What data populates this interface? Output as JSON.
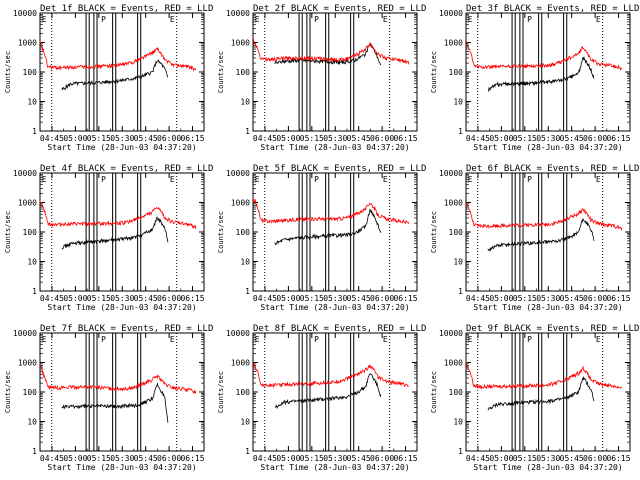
{
  "figure": {
    "xlabel": "Start Time (28-Jun-03 04:37:20)",
    "ylabel": "Counts/sec",
    "x_ticks": [
      "04:45",
      "05:00",
      "05:15",
      "05:30",
      "05:45",
      "06:00",
      "06:15"
    ],
    "y_ticks": [
      "1",
      "10",
      "100",
      "1000",
      "10000"
    ],
    "flags": [
      "E",
      "P",
      "E"
    ]
  },
  "chart_data": [
    {
      "type": "line",
      "title": "Det 1f BLACK = Events, RED = LLD",
      "xlabel": "Start Time (28-Jun-03 04:37:20)",
      "ylabel": "Counts/sec",
      "ylim": [
        1,
        10000
      ],
      "yscale": "log",
      "x_unit": "minutes after 04:37:20",
      "xlim": [
        0,
        105
      ],
      "series": [
        {
          "name": "Events",
          "color": "#000000",
          "x": [
            14,
            20,
            30,
            40,
            50,
            55,
            60,
            65,
            72,
            75,
            78,
            80,
            81,
            82
          ],
          "values": [
            25,
            40,
            42,
            45,
            50,
            55,
            60,
            70,
            100,
            250,
            180,
            120,
            90,
            60
          ]
        },
        {
          "name": "LLD",
          "color": "#ff0000",
          "x": [
            0,
            3,
            5,
            10,
            20,
            30,
            40,
            50,
            55,
            60,
            65,
            72,
            75,
            78,
            80,
            85,
            95,
            100
          ],
          "values": [
            1000,
            400,
            150,
            140,
            145,
            150,
            160,
            170,
            190,
            220,
            300,
            450,
            600,
            400,
            250,
            180,
            150,
            120
          ]
        }
      ]
    },
    {
      "type": "line",
      "title": "Det 2f BLACK = Events, RED = LLD",
      "xlabel": "Start Time (28-Jun-03 04:37:20)",
      "ylabel": "Counts/sec",
      "ylim": [
        1,
        10000
      ],
      "yscale": "log",
      "x_unit": "minutes after 04:37:20",
      "xlim": [
        0,
        105
      ],
      "series": [
        {
          "name": "Events",
          "color": "#000000",
          "x": [
            14,
            20,
            30,
            40,
            50,
            55,
            60,
            65,
            72,
            75,
            78,
            80,
            81,
            82
          ],
          "values": [
            200,
            230,
            250,
            240,
            220,
            210,
            220,
            250,
            400,
            900,
            500,
            300,
            200,
            150
          ]
        },
        {
          "name": "LLD",
          "color": "#ff0000",
          "x": [
            0,
            3,
            5,
            10,
            20,
            30,
            40,
            50,
            55,
            60,
            65,
            72,
            75,
            78,
            80,
            85,
            95,
            100
          ],
          "values": [
            1300,
            600,
            300,
            260,
            290,
            300,
            290,
            270,
            260,
            280,
            350,
            600,
            900,
            600,
            400,
            300,
            250,
            200
          ]
        }
      ]
    },
    {
      "type": "line",
      "title": "Det 3f BLACK = Events, RED = LLD",
      "xlabel": "Start Time (28-Jun-03 04:37:20)",
      "ylabel": "Counts/sec",
      "ylim": [
        1,
        10000
      ],
      "yscale": "log",
      "x_unit": "minutes after 04:37:20",
      "xlim": [
        0,
        105
      ],
      "series": [
        {
          "name": "Events",
          "color": "#000000",
          "x": [
            14,
            20,
            30,
            40,
            50,
            55,
            60,
            65,
            72,
            75,
            78,
            80,
            81,
            82
          ],
          "values": [
            25,
            38,
            40,
            42,
            45,
            48,
            52,
            60,
            90,
            300,
            180,
            120,
            90,
            60
          ]
        },
        {
          "name": "LLD",
          "color": "#ff0000",
          "x": [
            0,
            3,
            5,
            10,
            20,
            30,
            40,
            50,
            55,
            60,
            65,
            72,
            75,
            78,
            80,
            85,
            95,
            100
          ],
          "values": [
            1100,
            450,
            160,
            150,
            150,
            155,
            160,
            165,
            175,
            210,
            280,
            420,
            700,
            400,
            260,
            190,
            160,
            130
          ]
        }
      ]
    },
    {
      "type": "line",
      "title": "Det 4f BLACK = Events, RED = LLD",
      "xlabel": "Start Time (28-Jun-03 04:37:20)",
      "ylabel": "Counts/sec",
      "ylim": [
        1,
        10000
      ],
      "yscale": "log",
      "x_unit": "minutes after 04:37:20",
      "xlim": [
        0,
        105
      ],
      "series": [
        {
          "name": "Events",
          "color": "#000000",
          "x": [
            14,
            20,
            30,
            40,
            50,
            55,
            60,
            65,
            72,
            75,
            78,
            80,
            81,
            82
          ],
          "values": [
            30,
            40,
            45,
            50,
            55,
            60,
            65,
            80,
            120,
            300,
            200,
            130,
            80,
            40
          ]
        },
        {
          "name": "LLD",
          "color": "#ff0000",
          "x": [
            0,
            3,
            5,
            10,
            20,
            30,
            40,
            50,
            55,
            60,
            65,
            72,
            75,
            78,
            80,
            85,
            95,
            100
          ],
          "values": [
            1200,
            500,
            190,
            180,
            185,
            190,
            195,
            200,
            210,
            250,
            320,
            480,
            700,
            450,
            300,
            220,
            180,
            150
          ]
        }
      ]
    },
    {
      "type": "line",
      "title": "Det 5f BLACK = Events, RED = LLD",
      "xlabel": "Start Time (28-Jun-03 04:37:20)",
      "ylabel": "Counts/sec",
      "ylim": [
        1,
        10000
      ],
      "yscale": "log",
      "x_unit": "minutes after 04:37:20",
      "xlim": [
        0,
        105
      ],
      "series": [
        {
          "name": "Events",
          "color": "#000000",
          "x": [
            14,
            20,
            30,
            40,
            50,
            55,
            60,
            65,
            72,
            75,
            78,
            80,
            81,
            82
          ],
          "values": [
            40,
            55,
            65,
            70,
            75,
            78,
            80,
            90,
            150,
            600,
            300,
            180,
            120,
            80
          ]
        },
        {
          "name": "LLD",
          "color": "#ff0000",
          "x": [
            0,
            3,
            5,
            10,
            20,
            30,
            40,
            50,
            55,
            60,
            65,
            72,
            75,
            78,
            80,
            85,
            95,
            100
          ],
          "values": [
            1500,
            700,
            250,
            230,
            250,
            270,
            280,
            280,
            280,
            300,
            380,
            600,
            1000,
            600,
            380,
            280,
            230,
            200
          ]
        }
      ]
    },
    {
      "type": "line",
      "title": "Det 6f BLACK = Events, RED = LLD",
      "xlabel": "Start Time (28-Jun-03 04:37:20)",
      "ylabel": "Counts/sec",
      "ylim": [
        1,
        10000
      ],
      "yscale": "log",
      "x_unit": "minutes after 04:37:20",
      "xlim": [
        0,
        105
      ],
      "series": [
        {
          "name": "Events",
          "color": "#000000",
          "x": [
            14,
            20,
            30,
            40,
            50,
            55,
            60,
            65,
            72,
            75,
            78,
            80,
            81,
            82
          ],
          "values": [
            25,
            35,
            40,
            42,
            45,
            48,
            52,
            60,
            100,
            280,
            180,
            120,
            80,
            50
          ]
        },
        {
          "name": "LLD",
          "color": "#ff0000",
          "x": [
            0,
            3,
            5,
            10,
            20,
            30,
            40,
            50,
            55,
            60,
            65,
            72,
            75,
            78,
            80,
            85,
            95,
            100
          ],
          "values": [
            1000,
            420,
            170,
            160,
            165,
            170,
            175,
            180,
            190,
            220,
            290,
            420,
            600,
            380,
            250,
            190,
            160,
            130
          ]
        }
      ]
    },
    {
      "type": "line",
      "title": "Det 7f BLACK = Events, RED = LLD",
      "xlabel": "Start Time (28-Jun-03 04:37:20)",
      "ylabel": "Counts/sec",
      "ylim": [
        1,
        10000
      ],
      "yscale": "log",
      "x_unit": "minutes after 04:37:20",
      "xlim": [
        0,
        105
      ],
      "series": [
        {
          "name": "Events",
          "color": "#000000",
          "x": [
            14,
            20,
            30,
            40,
            50,
            55,
            60,
            65,
            72,
            75,
            78,
            80,
            81,
            82
          ],
          "values": [
            30,
            32,
            33,
            34,
            33,
            34,
            35,
            40,
            60,
            180,
            100,
            60,
            20,
            8
          ]
        },
        {
          "name": "LLD",
          "color": "#ff0000",
          "x": [
            0,
            3,
            5,
            10,
            20,
            30,
            40,
            50,
            55,
            60,
            65,
            72,
            75,
            78,
            80,
            85,
            95,
            100
          ],
          "values": [
            900,
            300,
            150,
            140,
            145,
            150,
            140,
            130,
            130,
            140,
            180,
            260,
            350,
            250,
            180,
            140,
            120,
            100
          ]
        }
      ]
    },
    {
      "type": "line",
      "title": "Det 8f BLACK = Events, RED = LLD",
      "xlabel": "Start Time (28-Jun-03 04:37:20)",
      "ylabel": "Counts/sec",
      "ylim": [
        1,
        10000
      ],
      "yscale": "log",
      "x_unit": "minutes after 04:37:20",
      "xlim": [
        0,
        105
      ],
      "series": [
        {
          "name": "Events",
          "color": "#000000",
          "x": [
            14,
            20,
            30,
            40,
            50,
            55,
            60,
            65,
            72,
            75,
            78,
            80,
            81,
            82
          ],
          "values": [
            30,
            45,
            50,
            55,
            60,
            65,
            70,
            85,
            150,
            450,
            250,
            150,
            100,
            70
          ]
        },
        {
          "name": "LLD",
          "color": "#ff0000",
          "x": [
            0,
            3,
            5,
            10,
            20,
            30,
            40,
            50,
            55,
            60,
            65,
            72,
            75,
            78,
            80,
            85,
            95,
            100
          ],
          "values": [
            1100,
            450,
            180,
            170,
            180,
            190,
            200,
            210,
            230,
            280,
            370,
            550,
            800,
            500,
            320,
            230,
            190,
            160
          ]
        }
      ]
    },
    {
      "type": "line",
      "title": "Det 9f BLACK = Events, RED = LLD",
      "xlabel": "Start Time (28-Jun-03 04:37:20)",
      "ylabel": "Counts/sec",
      "ylim": [
        1,
        10000
      ],
      "yscale": "log",
      "x_unit": "minutes after 04:37:20",
      "xlim": [
        0,
        105
      ],
      "series": [
        {
          "name": "Events",
          "color": "#000000",
          "x": [
            14,
            20,
            30,
            40,
            50,
            55,
            60,
            65,
            72,
            75,
            78,
            80,
            81,
            82
          ],
          "values": [
            25,
            38,
            42,
            45,
            48,
            52,
            55,
            65,
            100,
            300,
            180,
            120,
            80,
            50
          ]
        },
        {
          "name": "LLD",
          "color": "#ff0000",
          "x": [
            0,
            3,
            5,
            10,
            20,
            30,
            40,
            50,
            55,
            60,
            65,
            72,
            75,
            78,
            80,
            85,
            95,
            100
          ],
          "values": [
            1000,
            420,
            160,
            150,
            155,
            160,
            165,
            170,
            185,
            220,
            290,
            430,
            650,
            400,
            260,
            190,
            160,
            130
          ]
        }
      ]
    }
  ],
  "markers": {
    "dotted_x": [
      7.5,
      87.5
    ],
    "solid_pairs": [
      [
        29.5,
        31.5
      ],
      [
        34.5,
        36.5
      ],
      [
        46.5,
        48.5
      ],
      [
        62.5,
        64.5
      ]
    ],
    "flag_x": [
      0.5,
      38.5,
      82.5
    ]
  }
}
